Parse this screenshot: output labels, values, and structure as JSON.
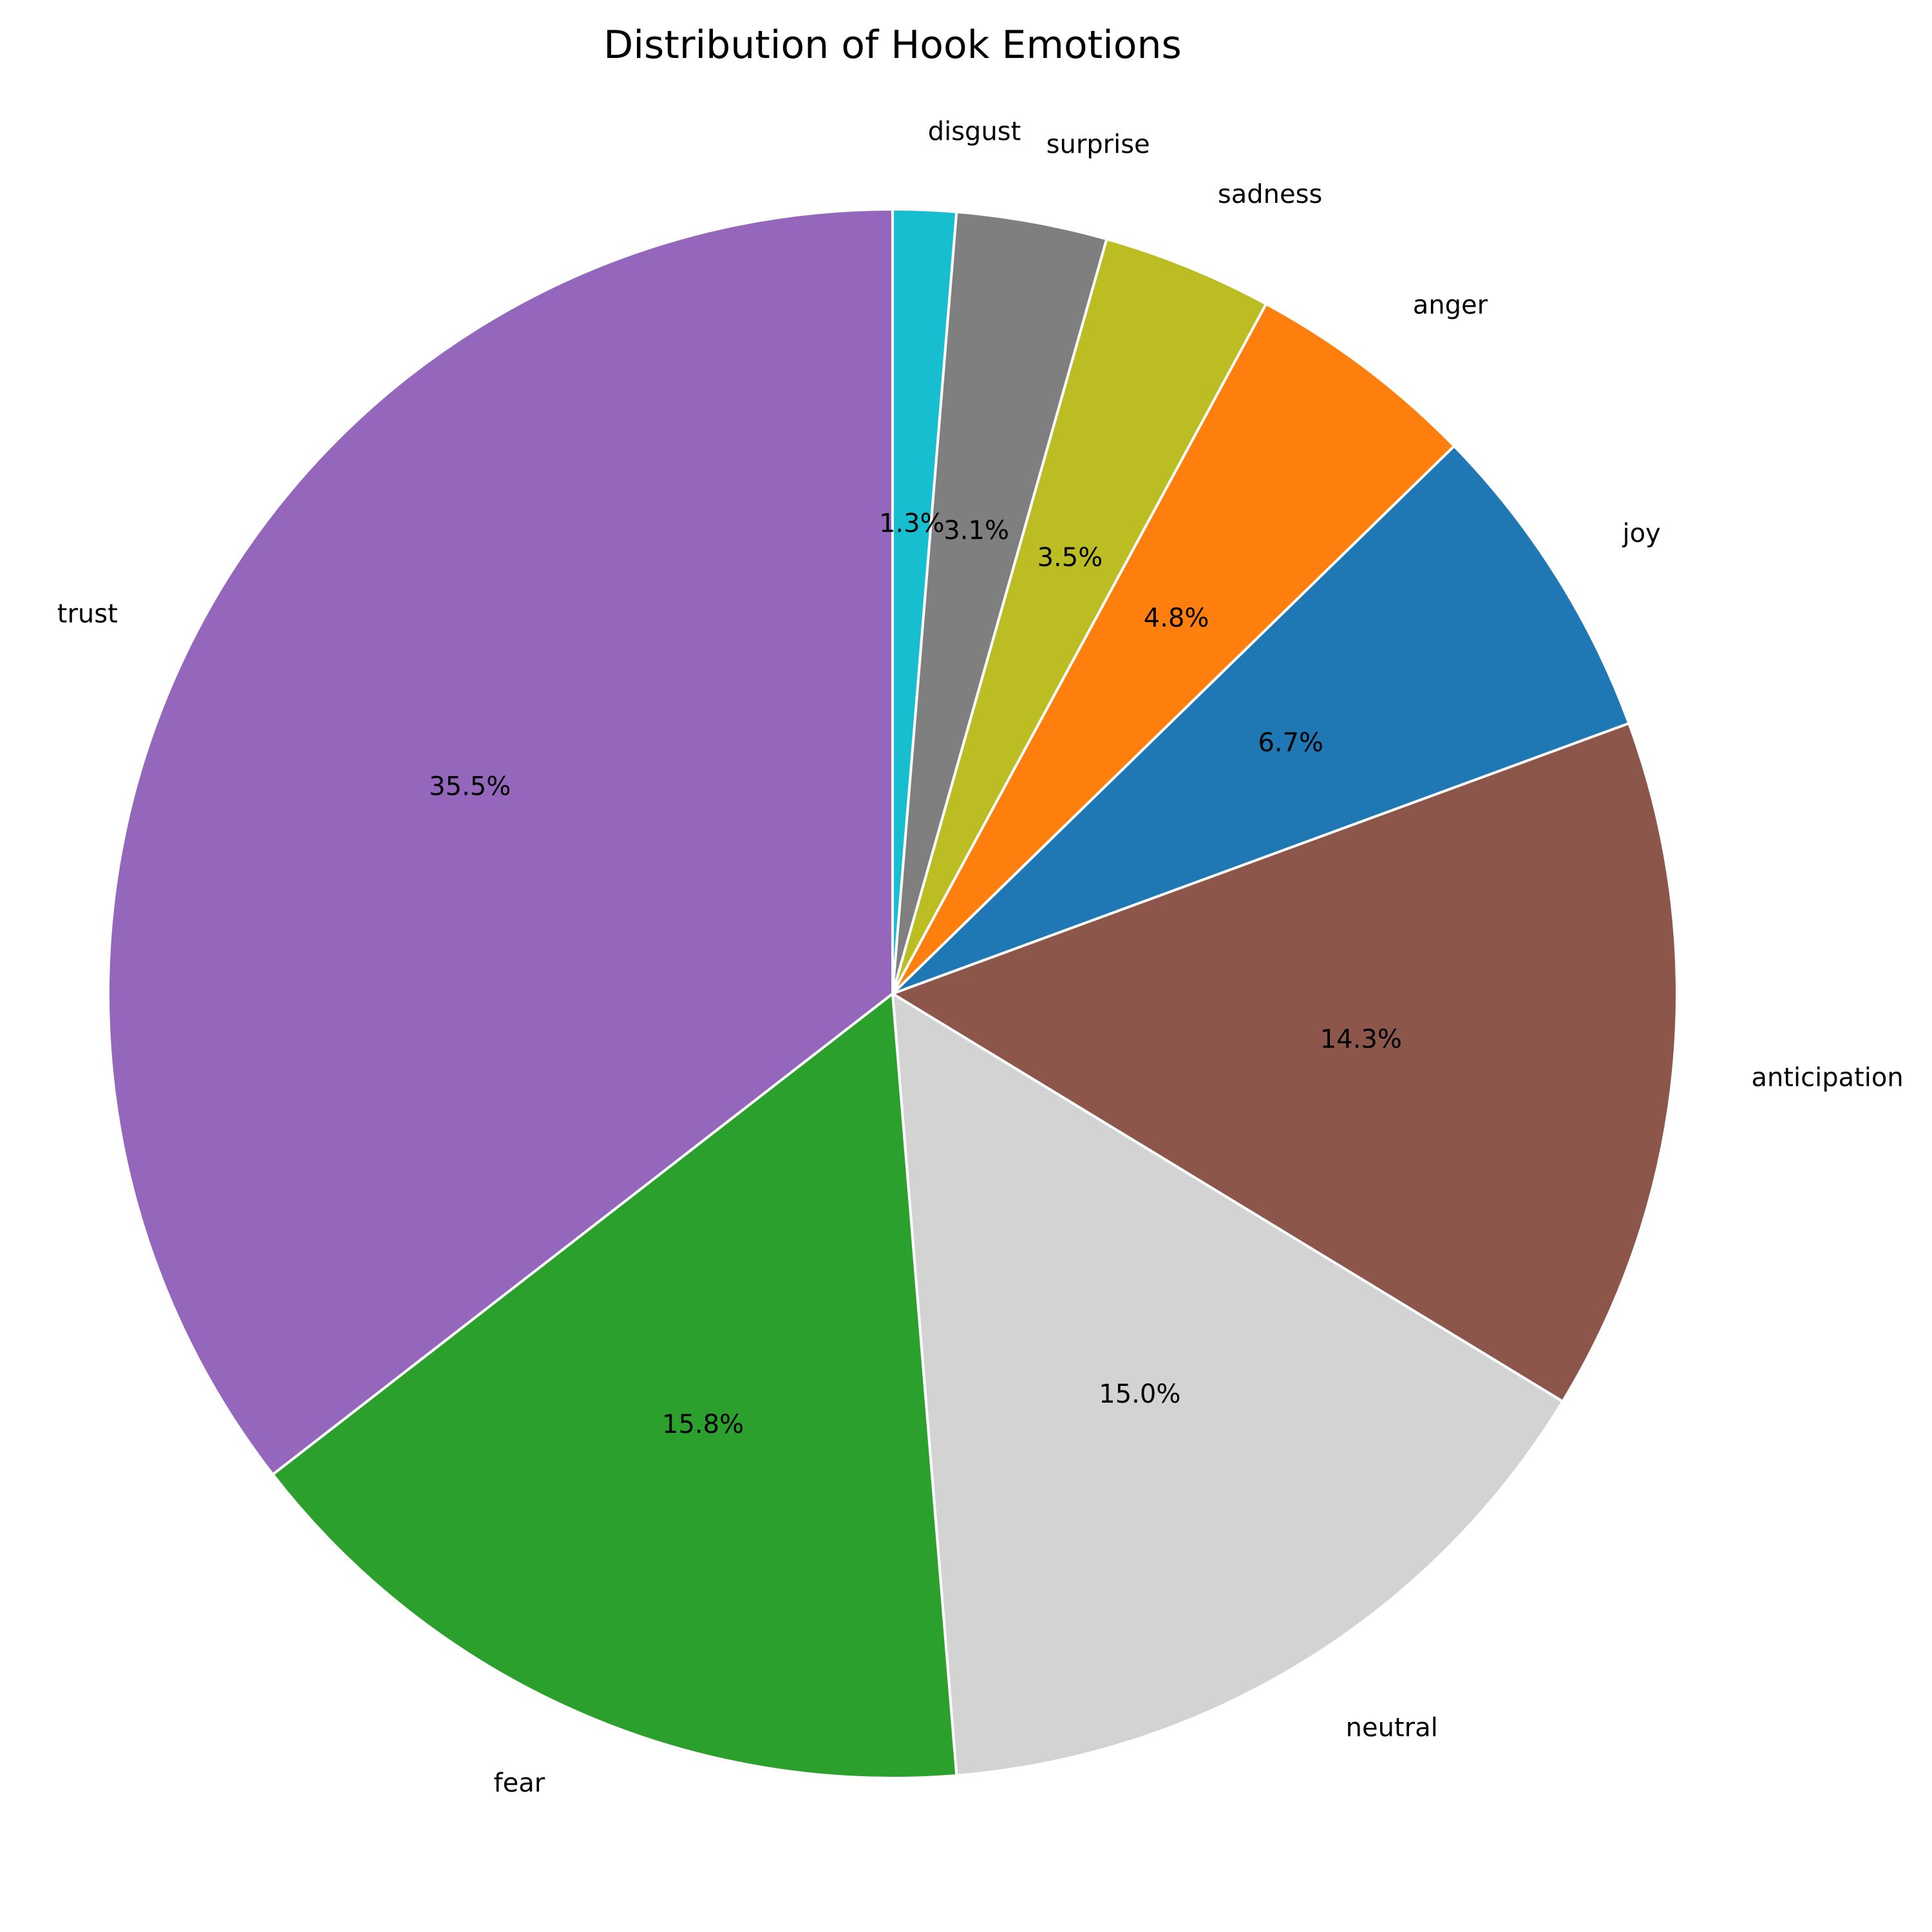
{
  "chart_data": {
    "type": "pie",
    "title": "Distribution of Hook Emotions",
    "start_angle_deg": 90,
    "direction": "clockwise",
    "legend": "none",
    "slices": [
      {
        "label": "disgust",
        "value": 1.3,
        "pct_label": "1.3%",
        "color": "#17becf"
      },
      {
        "label": "surprise",
        "value": 3.1,
        "pct_label": "3.1%",
        "color": "#7f7f7f"
      },
      {
        "label": "sadness",
        "value": 3.5,
        "pct_label": "3.5%",
        "color": "#bcbd22"
      },
      {
        "label": "anger",
        "value": 4.8,
        "pct_label": "4.8%",
        "color": "#ff7f0e"
      },
      {
        "label": "joy",
        "value": 6.7,
        "pct_label": "6.7%",
        "color": "#1f77b4"
      },
      {
        "label": "anticipation",
        "value": 14.3,
        "pct_label": "14.3%",
        "color": "#8c564b"
      },
      {
        "label": "neutral",
        "value": 15.0,
        "pct_label": "15.0%",
        "color": "#d3d3d3"
      },
      {
        "label": "fear",
        "value": 15.8,
        "pct_label": "15.8%",
        "color": "#2ca02c"
      },
      {
        "label": "trust",
        "value": 35.5,
        "pct_label": "35.5%",
        "color": "#9467bd"
      }
    ]
  }
}
